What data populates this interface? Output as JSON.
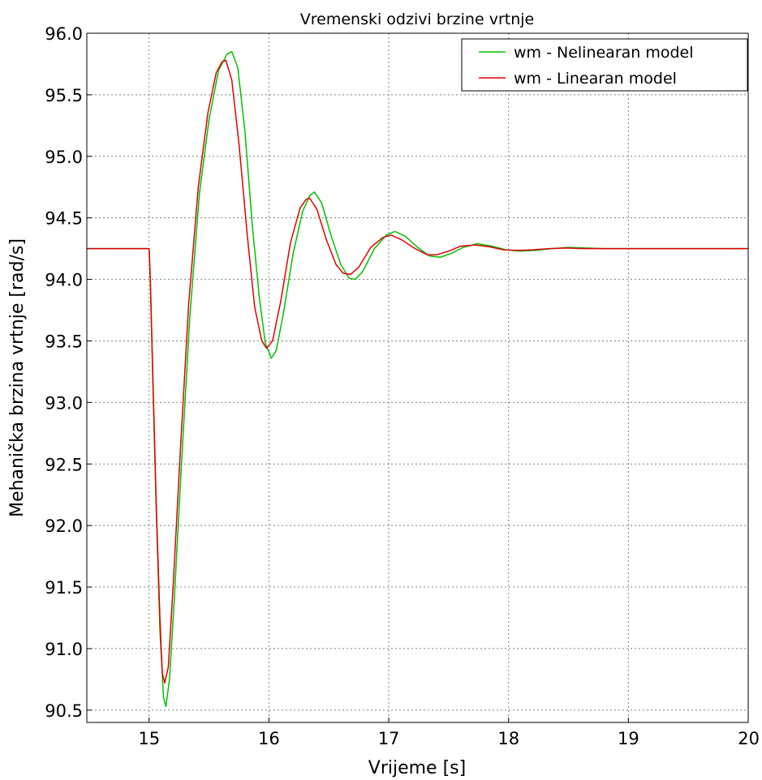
{
  "chart_data": {
    "type": "line",
    "title": "Vremenski odzivi brzine vrtnje",
    "xlabel": "Vrijeme [s]",
    "ylabel": "Mehanička brzina vrtnje [rad/s]",
    "xlim": [
      14.48,
      20
    ],
    "ylim": [
      90.4,
      96.0
    ],
    "x_ticks": [
      15,
      16,
      17,
      18,
      19,
      20
    ],
    "x_tick_labels": [
      "15",
      "16",
      "17",
      "18",
      "19",
      "20"
    ],
    "y_ticks": [
      90.5,
      91.0,
      91.5,
      92.0,
      92.5,
      93.0,
      93.5,
      94.0,
      94.5,
      95.0,
      95.5,
      96.0
    ],
    "y_tick_labels": [
      "90.5",
      "91.0",
      "91.5",
      "92.0",
      "92.5",
      "93.0",
      "93.5",
      "94.0",
      "94.5",
      "95.0",
      "95.5",
      "96.0"
    ],
    "grid": true,
    "legend_position": "top-right",
    "series": [
      {
        "name": "wm - Nelinearan model",
        "color": "#00c000",
        "points": [
          [
            14.48,
            94.25
          ],
          [
            14.9,
            94.25
          ],
          [
            15.0,
            94.25
          ],
          [
            15.01,
            94.0
          ],
          [
            15.03,
            93.2
          ],
          [
            15.06,
            92.1
          ],
          [
            15.09,
            91.15
          ],
          [
            15.12,
            90.6
          ],
          [
            15.14,
            90.53
          ],
          [
            15.17,
            90.75
          ],
          [
            15.21,
            91.4
          ],
          [
            15.27,
            92.5
          ],
          [
            15.34,
            93.7
          ],
          [
            15.42,
            94.7
          ],
          [
            15.5,
            95.3
          ],
          [
            15.58,
            95.7
          ],
          [
            15.65,
            95.83
          ],
          [
            15.69,
            95.85
          ],
          [
            15.74,
            95.72
          ],
          [
            15.8,
            95.2
          ],
          [
            15.86,
            94.45
          ],
          [
            15.92,
            93.85
          ],
          [
            15.97,
            93.48
          ],
          [
            16.02,
            93.36
          ],
          [
            16.06,
            93.42
          ],
          [
            16.12,
            93.72
          ],
          [
            16.2,
            94.2
          ],
          [
            16.28,
            94.55
          ],
          [
            16.34,
            94.68
          ],
          [
            16.38,
            94.71
          ],
          [
            16.44,
            94.62
          ],
          [
            16.52,
            94.35
          ],
          [
            16.6,
            94.12
          ],
          [
            16.67,
            94.01
          ],
          [
            16.72,
            94.0
          ],
          [
            16.78,
            94.06
          ],
          [
            16.88,
            94.25
          ],
          [
            16.98,
            94.36
          ],
          [
            17.05,
            94.39
          ],
          [
            17.14,
            94.35
          ],
          [
            17.24,
            94.26
          ],
          [
            17.34,
            94.19
          ],
          [
            17.43,
            94.18
          ],
          [
            17.52,
            94.21
          ],
          [
            17.62,
            94.26
          ],
          [
            17.74,
            94.29
          ],
          [
            17.86,
            94.27
          ],
          [
            17.98,
            94.24
          ],
          [
            18.1,
            94.23
          ],
          [
            18.22,
            94.235
          ],
          [
            18.36,
            94.25
          ],
          [
            18.5,
            94.26
          ],
          [
            18.65,
            94.255
          ],
          [
            18.8,
            94.25
          ],
          [
            19.0,
            94.25
          ],
          [
            19.5,
            94.25
          ],
          [
            20.0,
            94.25
          ]
        ]
      },
      {
        "name": "wm - Linearan model",
        "color": "#e00000",
        "points": [
          [
            14.48,
            94.25
          ],
          [
            14.9,
            94.25
          ],
          [
            15.0,
            94.25
          ],
          [
            15.01,
            94.0
          ],
          [
            15.03,
            93.25
          ],
          [
            15.06,
            92.15
          ],
          [
            15.09,
            91.25
          ],
          [
            15.11,
            90.8
          ],
          [
            15.13,
            90.72
          ],
          [
            15.16,
            90.85
          ],
          [
            15.2,
            91.5
          ],
          [
            15.26,
            92.6
          ],
          [
            15.33,
            93.8
          ],
          [
            15.41,
            94.75
          ],
          [
            15.49,
            95.35
          ],
          [
            15.56,
            95.68
          ],
          [
            15.61,
            95.77
          ],
          [
            15.64,
            95.78
          ],
          [
            15.69,
            95.62
          ],
          [
            15.75,
            95.1
          ],
          [
            15.82,
            94.35
          ],
          [
            15.88,
            93.78
          ],
          [
            15.94,
            93.5
          ],
          [
            15.98,
            93.44
          ],
          [
            16.03,
            93.5
          ],
          [
            16.1,
            93.83
          ],
          [
            16.18,
            94.3
          ],
          [
            16.26,
            94.58
          ],
          [
            16.31,
            94.65
          ],
          [
            16.34,
            94.66
          ],
          [
            16.4,
            94.57
          ],
          [
            16.48,
            94.32
          ],
          [
            16.56,
            94.12
          ],
          [
            16.62,
            94.05
          ],
          [
            16.68,
            94.04
          ],
          [
            16.75,
            94.1
          ],
          [
            16.85,
            94.26
          ],
          [
            16.95,
            94.34
          ],
          [
            17.02,
            94.36
          ],
          [
            17.11,
            94.32
          ],
          [
            17.22,
            94.25
          ],
          [
            17.32,
            94.2
          ],
          [
            17.4,
            94.2
          ],
          [
            17.5,
            94.23
          ],
          [
            17.6,
            94.27
          ],
          [
            17.72,
            94.28
          ],
          [
            17.84,
            94.265
          ],
          [
            17.96,
            94.24
          ],
          [
            18.08,
            94.235
          ],
          [
            18.2,
            94.24
          ],
          [
            18.34,
            94.25
          ],
          [
            18.48,
            94.255
          ],
          [
            18.64,
            94.25
          ],
          [
            18.8,
            94.25
          ],
          [
            19.0,
            94.25
          ],
          [
            19.5,
            94.25
          ],
          [
            20.0,
            94.25
          ]
        ]
      }
    ]
  }
}
